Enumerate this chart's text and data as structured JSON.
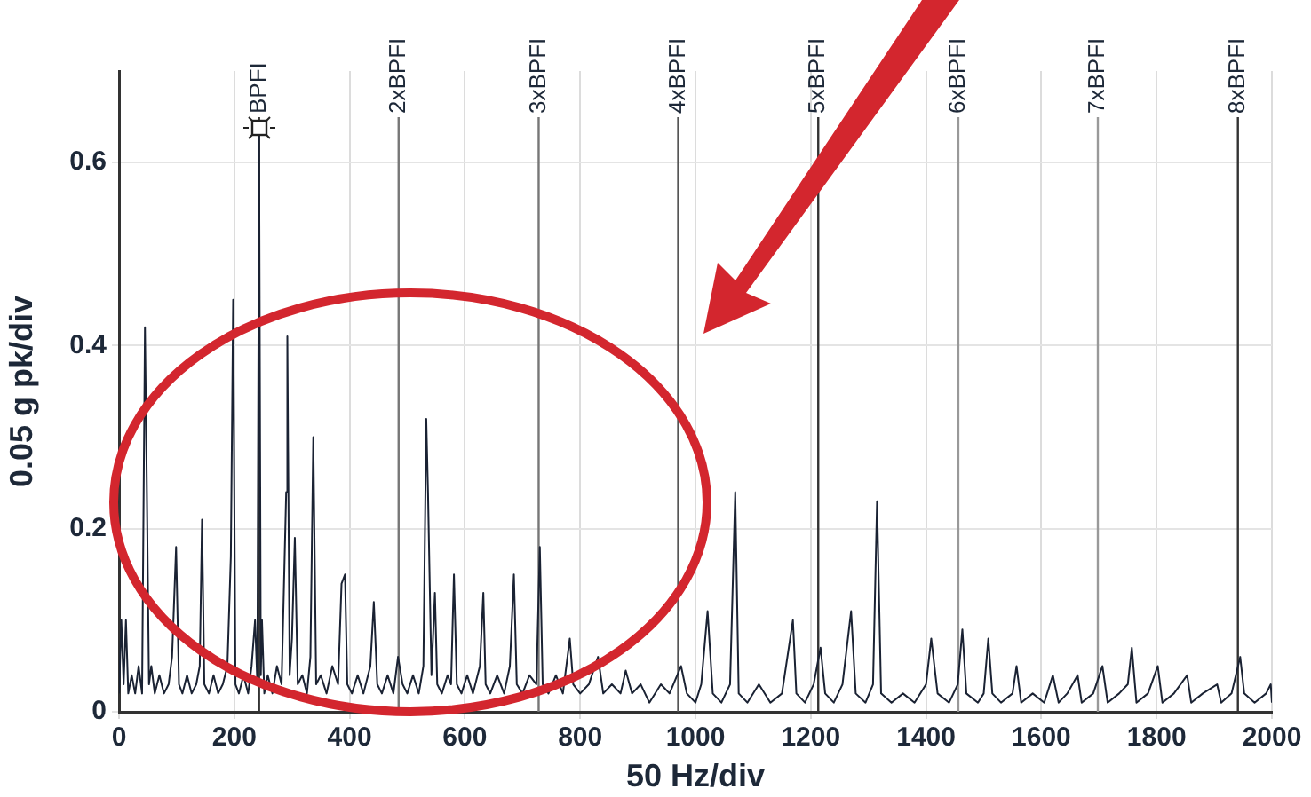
{
  "chart_data": {
    "type": "line",
    "xlabel": "50 Hz/div",
    "ylabel": "0.05 g pk/div",
    "xlim": [
      0,
      2000
    ],
    "xticks": [
      0,
      200,
      400,
      600,
      800,
      1000,
      1200,
      1400,
      1600,
      1800,
      2000
    ],
    "ylim": [
      0,
      0.7
    ],
    "yticks": [
      0,
      0.2,
      0.4,
      0.6
    ],
    "grid": true,
    "marker": "none",
    "line_style": "solid",
    "ref_lines": [
      {
        "axis": "x",
        "value": 243,
        "label": "BPFI",
        "color": "#333333"
      },
      {
        "axis": "x",
        "value": 485,
        "label": "2xBPFI",
        "color": "#777777"
      },
      {
        "axis": "x",
        "value": 728,
        "label": "3xBPFI",
        "color": "#777777"
      },
      {
        "axis": "x",
        "value": 970,
        "label": "4xBPFI",
        "color": "#555555"
      },
      {
        "axis": "x",
        "value": 1213,
        "label": "5xBPFI",
        "color": "#333333"
      },
      {
        "axis": "x",
        "value": 1456,
        "label": "6xBPFI",
        "color": "#999999"
      },
      {
        "axis": "x",
        "value": 1698,
        "label": "7xBPFI",
        "color": "#999999"
      },
      {
        "axis": "x",
        "value": 1941,
        "label": "8xBPFI",
        "color": "#333333"
      }
    ],
    "series": [
      {
        "color": "#1a2233",
        "x": [
          0,
          4,
          8,
          12,
          16,
          22,
          28,
          34,
          40,
          45,
          48,
          52,
          56,
          62,
          70,
          78,
          86,
          92,
          99,
          104,
          110,
          118,
          126,
          134,
          140,
          144,
          148,
          156,
          164,
          172,
          180,
          188,
          194,
          198,
          202,
          208,
          216,
          224,
          230,
          236,
          240,
          243,
          246,
          248,
          252,
          258,
          266,
          274,
          282,
          290,
          292,
          296,
          300,
          305,
          310,
          318,
          326,
          332,
          337,
          342,
          350,
          360,
          370,
          380,
          386,
          392,
          396,
          404,
          414,
          424,
          436,
          442,
          448,
          456,
          466,
          476,
          484,
          492,
          500,
          510,
          520,
          528,
          533,
          536,
          542,
          548,
          552,
          560,
          570,
          576,
          581,
          586,
          594,
          604,
          614,
          626,
          632,
          636,
          644,
          656,
          668,
          678,
          685,
          690,
          700,
          712,
          724,
          730,
          735,
          745,
          758,
          770,
          782,
          788,
          800,
          815,
          831,
          840,
          855,
          870,
          879,
          890,
          905,
          920,
          940,
          955,
          975,
          985,
          1000,
          1010,
          1021,
          1030,
          1045,
          1060,
          1069,
          1075,
          1090,
          1110,
          1130,
          1150,
          1169,
          1175,
          1190,
          1205,
          1217,
          1225,
          1240,
          1255,
          1270,
          1278,
          1295,
          1308,
          1315,
          1322,
          1340,
          1360,
          1380,
          1400,
          1409,
          1420,
          1440,
          1455,
          1463,
          1470,
          1490,
          1500,
          1508,
          1515,
          1530,
          1550,
          1557,
          1565,
          1585,
          1605,
          1620,
          1630,
          1645,
          1663,
          1670,
          1690,
          1706,
          1715,
          1735,
          1750,
          1757,
          1765,
          1785,
          1802,
          1810,
          1830,
          1853,
          1860,
          1880,
          1905,
          1912,
          1930,
          1945,
          1952,
          1970,
          1990,
          1998,
          2000
        ],
        "values": [
          0.02,
          0.1,
          0.03,
          0.1,
          0.02,
          0.04,
          0.02,
          0.05,
          0.02,
          0.42,
          0.26,
          0.03,
          0.05,
          0.02,
          0.04,
          0.02,
          0.03,
          0.06,
          0.18,
          0.03,
          0.02,
          0.04,
          0.02,
          0.03,
          0.05,
          0.21,
          0.03,
          0.02,
          0.04,
          0.02,
          0.03,
          0.05,
          0.17,
          0.45,
          0.03,
          0.02,
          0.04,
          0.02,
          0.05,
          0.1,
          0.03,
          0.63,
          0.04,
          0.1,
          0.02,
          0.04,
          0.02,
          0.05,
          0.03,
          0.24,
          0.41,
          0.04,
          0.08,
          0.19,
          0.03,
          0.04,
          0.02,
          0.06,
          0.3,
          0.03,
          0.04,
          0.02,
          0.05,
          0.03,
          0.14,
          0.15,
          0.03,
          0.02,
          0.04,
          0.02,
          0.05,
          0.12,
          0.03,
          0.02,
          0.04,
          0.02,
          0.06,
          0.03,
          0.02,
          0.04,
          0.02,
          0.05,
          0.32,
          0.24,
          0.04,
          0.13,
          0.03,
          0.02,
          0.04,
          0.03,
          0.15,
          0.03,
          0.02,
          0.04,
          0.02,
          0.05,
          0.13,
          0.03,
          0.02,
          0.04,
          0.02,
          0.05,
          0.15,
          0.03,
          0.02,
          0.04,
          0.03,
          0.18,
          0.03,
          0.02,
          0.04,
          0.02,
          0.08,
          0.03,
          0.02,
          0.03,
          0.06,
          0.02,
          0.03,
          0.02,
          0.045,
          0.02,
          0.03,
          0.01,
          0.03,
          0.02,
          0.05,
          0.02,
          0.01,
          0.03,
          0.11,
          0.02,
          0.01,
          0.03,
          0.24,
          0.02,
          0.01,
          0.03,
          0.01,
          0.02,
          0.1,
          0.02,
          0.01,
          0.03,
          0.07,
          0.02,
          0.01,
          0.03,
          0.11,
          0.02,
          0.01,
          0.03,
          0.23,
          0.02,
          0.01,
          0.02,
          0.01,
          0.03,
          0.08,
          0.02,
          0.01,
          0.03,
          0.09,
          0.02,
          0.01,
          0.02,
          0.08,
          0.02,
          0.01,
          0.02,
          0.05,
          0.01,
          0.02,
          0.01,
          0.04,
          0.01,
          0.02,
          0.04,
          0.01,
          0.02,
          0.05,
          0.01,
          0.02,
          0.03,
          0.07,
          0.01,
          0.02,
          0.05,
          0.01,
          0.02,
          0.04,
          0.01,
          0.02,
          0.03,
          0.01,
          0.02,
          0.06,
          0.02,
          0.01,
          0.02,
          0.03,
          0.01
        ]
      }
    ]
  }
}
